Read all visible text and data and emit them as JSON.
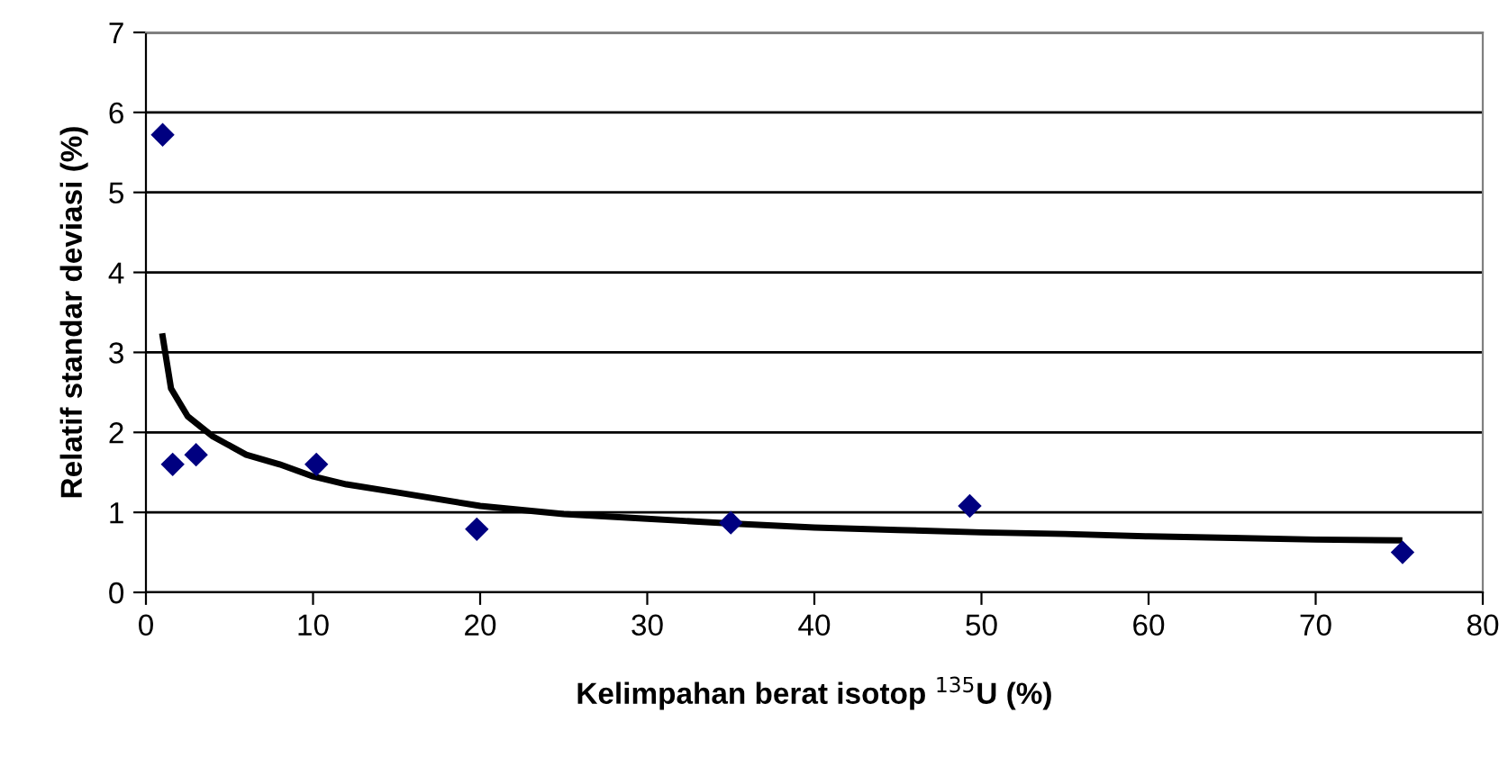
{
  "chart_data": {
    "type": "scatter",
    "xlabel": "Kelimpahan berat isotop $^{135}$U (%)",
    "ylabel": "Relatif standar deviasi (%)",
    "xlim": [
      0,
      80
    ],
    "ylim": [
      0,
      7
    ],
    "xticks": [
      0,
      10,
      20,
      30,
      40,
      50,
      60,
      70,
      80
    ],
    "yticks": [
      0,
      1,
      2,
      3,
      4,
      5,
      6,
      7
    ],
    "grid": "y",
    "legend": false,
    "series": [
      {
        "color": "#000080",
        "marker": "diamond",
        "x": [
          1,
          1.6,
          3,
          10.2,
          19.8,
          35,
          49.3,
          75.2
        ],
        "values": [
          5.72,
          1.6,
          1.72,
          1.6,
          0.79,
          0.87,
          1.08,
          0.5
        ]
      },
      {
        "type": "line",
        "color": "#000000",
        "marker": "none",
        "line_style": "solid",
        "x": [
          1,
          1.5,
          2.5,
          4,
          6,
          8,
          10,
          12,
          15,
          20,
          25,
          30,
          35,
          40,
          45,
          50,
          55,
          60,
          65,
          70,
          75
        ],
        "values": [
          3.2,
          2.55,
          2.2,
          1.95,
          1.72,
          1.6,
          1.45,
          1.35,
          1.25,
          1.08,
          0.98,
          0.92,
          0.86,
          0.81,
          0.78,
          0.75,
          0.73,
          0.7,
          0.68,
          0.66,
          0.65
        ]
      }
    ]
  }
}
